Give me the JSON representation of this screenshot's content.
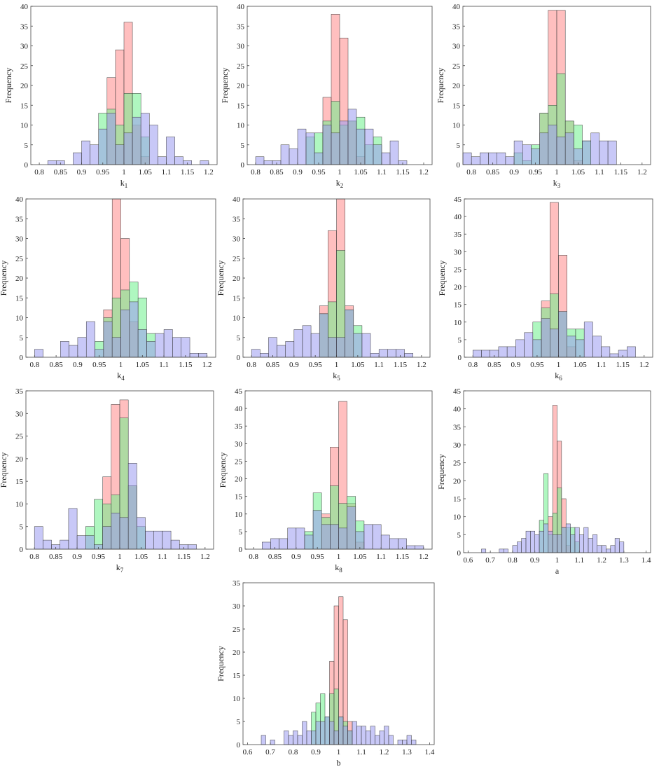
{
  "figure": {
    "colors": {
      "series_a": "#ff8a8a",
      "series_b": "#6ef08c",
      "series_c": "#9a9af0",
      "bar_edge": "#3a3a3a"
    },
    "series_opacity": 0.55
  },
  "chart_data": [
    {
      "id": "k1",
      "type": "histogram",
      "xlabel": "k",
      "xlabel_sub": "1",
      "ylabel": "Frequency",
      "xlim": [
        0.78,
        1.22
      ],
      "ylim": [
        0,
        40
      ],
      "xticks": [
        0.8,
        0.85,
        0.9,
        0.95,
        1,
        1.05,
        1.1,
        1.15,
        1.2
      ],
      "yticks": [
        0,
        5,
        10,
        15,
        20,
        25,
        30,
        35,
        40
      ],
      "bin_width": 0.02,
      "series": [
        {
          "bins": [
            0.96,
            0.98,
            1.0,
            1.02,
            1.04
          ],
          "counts": [
            22,
            29,
            36,
            10,
            2
          ]
        },
        {
          "bins": [
            0.94,
            0.96,
            0.98,
            1.0,
            1.02,
            1.04
          ],
          "counts": [
            13,
            14,
            10,
            18,
            18,
            7
          ]
        },
        {
          "bins": [
            0.82,
            0.84,
            0.88,
            0.9,
            0.92,
            0.94,
            0.96,
            0.98,
            1.0,
            1.02,
            1.04,
            1.06,
            1.08,
            1.1,
            1.12,
            1.14,
            1.18
          ],
          "counts": [
            1,
            1,
            3,
            6,
            5,
            9,
            13,
            5,
            8,
            12,
            13,
            10,
            2,
            7,
            2,
            1,
            1
          ]
        }
      ]
    },
    {
      "id": "k2",
      "type": "histogram",
      "xlabel": "k",
      "xlabel_sub": "2",
      "ylabel": "Frequency",
      "xlim": [
        0.78,
        1.22
      ],
      "ylim": [
        0,
        40
      ],
      "xticks": [
        0.8,
        0.85,
        0.9,
        0.95,
        1,
        1.05,
        1.1,
        1.15,
        1.2
      ],
      "yticks": [
        0,
        5,
        10,
        15,
        20,
        25,
        30,
        35,
        40
      ],
      "bin_width": 0.02,
      "series": [
        {
          "bins": [
            0.96,
            0.98,
            1.0,
            1.02,
            1.04
          ],
          "counts": [
            17,
            38,
            32,
            11,
            2
          ]
        },
        {
          "bins": [
            0.92,
            0.94,
            0.96,
            0.98,
            1.0,
            1.02,
            1.04,
            1.06,
            1.08
          ],
          "counts": [
            7,
            8,
            11,
            16,
            10,
            11,
            12,
            5,
            7
          ]
        },
        {
          "bins": [
            0.8,
            0.82,
            0.84,
            0.86,
            0.88,
            0.9,
            0.92,
            0.94,
            0.96,
            0.98,
            1.0,
            1.02,
            1.04,
            1.06,
            1.08,
            1.1,
            1.12,
            1.14
          ],
          "counts": [
            2,
            1,
            1,
            5,
            4,
            9,
            8,
            3,
            10,
            8,
            11,
            14,
            9,
            9,
            5,
            3,
            6,
            1
          ]
        }
      ]
    },
    {
      "id": "k3",
      "type": "histogram",
      "xlabel": "k",
      "xlabel_sub": "3",
      "ylabel": "Frequency",
      "xlim": [
        0.78,
        1.22
      ],
      "ylim": [
        0,
        40
      ],
      "xticks": [
        0.8,
        0.85,
        0.9,
        0.95,
        1,
        1.05,
        1.1,
        1.15,
        1.2
      ],
      "yticks": [
        0,
        5,
        10,
        15,
        20,
        25,
        30,
        35,
        40
      ],
      "bin_width": 0.02,
      "series": [
        {
          "bins": [
            0.96,
            0.98,
            1.0,
            1.02,
            1.04
          ],
          "counts": [
            13,
            39,
            39,
            11,
            1
          ]
        },
        {
          "bins": [
            0.9,
            0.92,
            0.94,
            0.96,
            0.98,
            1.0,
            1.02,
            1.04,
            1.06
          ],
          "counts": [
            3,
            1,
            5,
            13,
            15,
            23,
            11,
            10,
            6
          ]
        },
        {
          "bins": [
            0.78,
            0.8,
            0.82,
            0.84,
            0.86,
            0.88,
            0.9,
            0.92,
            0.94,
            0.96,
            0.98,
            1.0,
            1.02,
            1.04,
            1.06,
            1.08,
            1.1,
            1.12
          ],
          "counts": [
            3,
            2,
            3,
            3,
            3,
            2,
            6,
            5,
            4,
            8,
            10,
            7,
            8,
            4,
            6,
            8,
            6,
            6
          ]
        }
      ]
    },
    {
      "id": "k4",
      "type": "histogram",
      "xlabel": "k",
      "xlabel_sub": "4",
      "ylabel": "Frequency",
      "xlim": [
        0.78,
        1.22
      ],
      "ylim": [
        0,
        40
      ],
      "xticks": [
        0.8,
        0.85,
        0.9,
        0.95,
        1,
        1.05,
        1.1,
        1.15,
        1.2
      ],
      "yticks": [
        0,
        5,
        10,
        15,
        20,
        25,
        30,
        35,
        40
      ],
      "bin_width": 0.02,
      "series": [
        {
          "bins": [
            0.96,
            0.98,
            1.0,
            1.02
          ],
          "counts": [
            12,
            40,
            30,
            9
          ]
        },
        {
          "bins": [
            0.94,
            0.96,
            0.98,
            1.0,
            1.02,
            1.04,
            1.06
          ],
          "counts": [
            4,
            10,
            15,
            17,
            19,
            15,
            6
          ]
        },
        {
          "bins": [
            0.8,
            0.86,
            0.88,
            0.9,
            0.92,
            0.94,
            0.96,
            0.98,
            1.0,
            1.02,
            1.04,
            1.06,
            1.08,
            1.1,
            1.12,
            1.14,
            1.16,
            1.18
          ],
          "counts": [
            2,
            4,
            3,
            5,
            9,
            2,
            9,
            5,
            12,
            14,
            7,
            4,
            6,
            7,
            5,
            5,
            1,
            1
          ]
        }
      ]
    },
    {
      "id": "k5",
      "type": "histogram",
      "xlabel": "k",
      "xlabel_sub": "5",
      "ylabel": "Frequency",
      "xlim": [
        0.78,
        1.22
      ],
      "ylim": [
        0,
        40
      ],
      "xticks": [
        0.8,
        0.85,
        0.9,
        0.95,
        1,
        1.05,
        1.1,
        1.15,
        1.2
      ],
      "yticks": [
        0,
        5,
        10,
        15,
        20,
        25,
        30,
        35,
        40
      ],
      "bin_width": 0.02,
      "series": [
        {
          "bins": [
            0.96,
            0.98,
            1.0,
            1.02
          ],
          "counts": [
            13,
            32,
            40,
            13
          ]
        },
        {
          "bins": [
            0.96,
            0.98,
            1.0,
            1.02,
            1.04
          ],
          "counts": [
            11,
            14,
            27,
            12,
            8
          ]
        },
        {
          "bins": [
            0.8,
            0.82,
            0.84,
            0.86,
            0.88,
            0.9,
            0.92,
            0.94,
            0.96,
            0.98,
            1.0,
            1.02,
            1.04,
            1.06,
            1.08,
            1.1,
            1.12,
            1.14,
            1.16
          ],
          "counts": [
            2,
            1,
            5,
            3,
            4,
            7,
            8,
            6,
            11,
            5,
            5,
            12,
            6,
            6,
            1,
            2,
            2,
            2,
            1
          ]
        }
      ]
    },
    {
      "id": "k6",
      "type": "histogram",
      "xlabel": "k",
      "xlabel_sub": "6",
      "ylabel": "Frequency",
      "xlim": [
        0.78,
        1.22
      ],
      "ylim": [
        0,
        45
      ],
      "xticks": [
        0.8,
        0.85,
        0.9,
        0.95,
        1,
        1.05,
        1.1,
        1.15,
        1.2
      ],
      "yticks": [
        0,
        5,
        10,
        15,
        20,
        25,
        30,
        35,
        40,
        45
      ],
      "bin_width": 0.02,
      "series": [
        {
          "bins": [
            0.96,
            0.98,
            1.0,
            1.02
          ],
          "counts": [
            16,
            44,
            29,
            3
          ]
        },
        {
          "bins": [
            0.94,
            0.96,
            0.98,
            1.0,
            1.02,
            1.04
          ],
          "counts": [
            10,
            14,
            18,
            13,
            8,
            8
          ]
        },
        {
          "bins": [
            0.8,
            0.82,
            0.84,
            0.86,
            0.88,
            0.9,
            0.92,
            0.94,
            0.96,
            0.98,
            1.0,
            1.02,
            1.04,
            1.06,
            1.08,
            1.1,
            1.12,
            1.14,
            1.16
          ],
          "counts": [
            2,
            2,
            2,
            3,
            3,
            5,
            7,
            5,
            11,
            8,
            13,
            6,
            5,
            10,
            6,
            3,
            1,
            2,
            3
          ]
        }
      ]
    },
    {
      "id": "k7",
      "type": "histogram",
      "xlabel": "k",
      "xlabel_sub": "7",
      "ylabel": "Frequency",
      "xlim": [
        0.78,
        1.22
      ],
      "ylim": [
        0,
        35
      ],
      "xticks": [
        0.8,
        0.85,
        0.9,
        0.95,
        1,
        1.05,
        1.1,
        1.15,
        1.2
      ],
      "yticks": [
        0,
        5,
        10,
        15,
        20,
        25,
        30,
        35
      ],
      "bin_width": 0.02,
      "series": [
        {
          "bins": [
            0.96,
            0.98,
            1.0,
            1.02
          ],
          "counts": [
            16,
            32,
            33,
            14
          ]
        },
        {
          "bins": [
            0.92,
            0.94,
            0.96,
            0.98,
            1.0,
            1.02,
            1.04
          ],
          "counts": [
            5,
            11,
            10,
            12,
            29,
            14,
            5
          ]
        },
        {
          "bins": [
            0.8,
            0.82,
            0.84,
            0.86,
            0.88,
            0.9,
            0.92,
            0.94,
            0.96,
            0.98,
            1.0,
            1.02,
            1.04,
            1.06,
            1.08,
            1.1,
            1.12,
            1.14,
            1.16
          ],
          "counts": [
            5,
            2,
            1,
            2,
            9,
            3,
            3,
            1,
            5,
            8,
            7,
            19,
            7,
            4,
            4,
            4,
            2,
            1,
            1
          ]
        }
      ]
    },
    {
      "id": "k8",
      "type": "histogram",
      "xlabel": "k",
      "xlabel_sub": "8",
      "ylabel": "Frequency",
      "xlim": [
        0.78,
        1.22
      ],
      "ylim": [
        0,
        45
      ],
      "xticks": [
        0.8,
        0.85,
        0.9,
        0.95,
        1,
        1.05,
        1.1,
        1.15,
        1.2
      ],
      "yticks": [
        0,
        5,
        10,
        15,
        20,
        25,
        30,
        35,
        40,
        45
      ],
      "bin_width": 0.02,
      "series": [
        {
          "bins": [
            0.96,
            0.98,
            1.0,
            1.02,
            1.04
          ],
          "counts": [
            10,
            29,
            42,
            13,
            2
          ]
        },
        {
          "bins": [
            0.92,
            0.94,
            0.96,
            0.98,
            1.0,
            1.02,
            1.04
          ],
          "counts": [
            5,
            16,
            9,
            18,
            13,
            15,
            8
          ]
        },
        {
          "bins": [
            0.82,
            0.84,
            0.86,
            0.88,
            0.9,
            0.92,
            0.94,
            0.96,
            0.98,
            1.0,
            1.02,
            1.04,
            1.06,
            1.08,
            1.1,
            1.12,
            1.14,
            1.16,
            1.18
          ],
          "counts": [
            2,
            3,
            3,
            6,
            6,
            4,
            11,
            7,
            7,
            6,
            12,
            5,
            7,
            7,
            4,
            3,
            3,
            1,
            1
          ]
        }
      ]
    },
    {
      "id": "a",
      "type": "histogram",
      "xlabel": "a",
      "xlabel_sub": "",
      "ylabel": "Frequency",
      "xlim": [
        0.58,
        1.42
      ],
      "ylim": [
        0,
        45
      ],
      "xticks": [
        0.6,
        0.7,
        0.8,
        0.9,
        1,
        1.1,
        1.2,
        1.3,
        1.4
      ],
      "yticks": [
        0,
        5,
        10,
        15,
        20,
        25,
        30,
        35,
        40,
        45
      ],
      "bin_width": 0.02,
      "series": [
        {
          "bins": [
            0.96,
            0.98,
            1.0,
            1.02,
            1.04
          ],
          "counts": [
            10,
            41,
            31,
            15,
            2
          ]
        },
        {
          "bins": [
            0.92,
            0.94,
            0.96,
            0.98,
            1.0,
            1.02,
            1.04,
            1.06,
            1.08
          ],
          "counts": [
            9,
            22,
            5,
            11,
            18,
            7,
            7,
            7,
            3
          ]
        },
        {
          "bins": [
            0.66,
            0.74,
            0.76,
            0.8,
            0.82,
            0.84,
            0.86,
            0.88,
            0.9,
            0.92,
            0.94,
            0.96,
            0.98,
            1.0,
            1.02,
            1.04,
            1.06,
            1.08,
            1.1,
            1.12,
            1.14,
            1.16,
            1.18,
            1.2,
            1.22,
            1.24,
            1.26,
            1.28
          ],
          "counts": [
            1,
            1,
            1,
            2,
            3,
            4,
            6,
            6,
            5,
            6,
            8,
            6,
            5,
            5,
            7,
            8,
            5,
            7,
            5,
            7,
            4,
            5,
            2,
            2,
            1,
            2,
            4,
            3
          ]
        }
      ]
    },
    {
      "id": "b",
      "type": "histogram",
      "xlabel": "b",
      "xlabel_sub": "",
      "ylabel": "Frequency",
      "xlim": [
        0.58,
        1.42
      ],
      "ylim": [
        0,
        35
      ],
      "xticks": [
        0.6,
        0.7,
        0.8,
        0.9,
        1,
        1.1,
        1.2,
        1.3,
        1.4
      ],
      "yticks": [
        0,
        5,
        10,
        15,
        20,
        25,
        30,
        35
      ],
      "bin_width": 0.02,
      "series": [
        {
          "bins": [
            0.96,
            0.98,
            1.0,
            1.02,
            1.04
          ],
          "counts": [
            18,
            30,
            32,
            27,
            5
          ]
        },
        {
          "bins": [
            0.88,
            0.9,
            0.92,
            0.94,
            0.96,
            0.98,
            1.0,
            1.02,
            1.04
          ],
          "counts": [
            7,
            9,
            11,
            6,
            11,
            12,
            6,
            5,
            3
          ]
        },
        {
          "bins": [
            0.66,
            0.7,
            0.76,
            0.78,
            0.8,
            0.82,
            0.84,
            0.86,
            0.88,
            0.9,
            0.92,
            0.94,
            0.96,
            0.98,
            1.0,
            1.02,
            1.04,
            1.06,
            1.08,
            1.1,
            1.12,
            1.14,
            1.16,
            1.18,
            1.2,
            1.22,
            1.26,
            1.28,
            1.3,
            1.32
          ],
          "counts": [
            2,
            1,
            3,
            2,
            3,
            2,
            5,
            3,
            3,
            5,
            5,
            6,
            5,
            3,
            6,
            4,
            3,
            5,
            4,
            4,
            3,
            4,
            2,
            3,
            4,
            2,
            1,
            1,
            2,
            1
          ]
        }
      ]
    }
  ]
}
